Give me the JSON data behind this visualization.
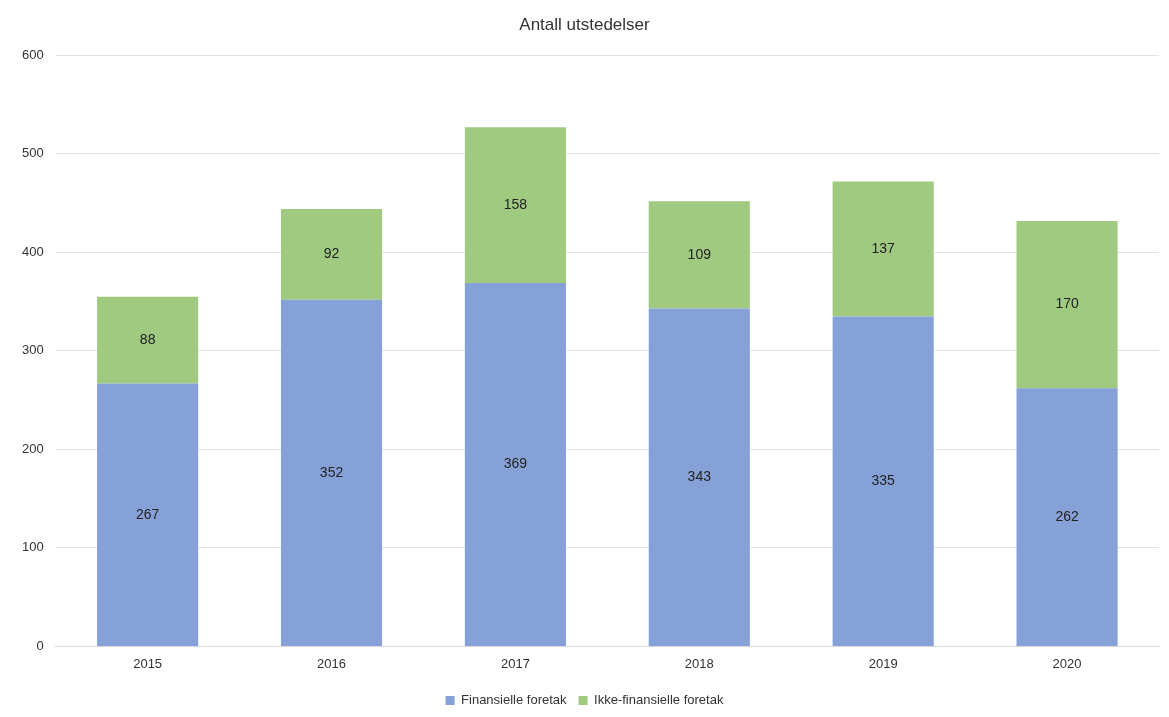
{
  "chart_data": {
    "type": "bar",
    "title": "Antall utstedelser",
    "categories": [
      "2015",
      "2016",
      "2017",
      "2018",
      "2019",
      "2020"
    ],
    "stacked": true,
    "series": [
      {
        "name": "Finansielle foretak",
        "color": "#86a1d8",
        "values": [
          267,
          352,
          369,
          343,
          335,
          262
        ]
      },
      {
        "name": "Ikke-finansielle foretak",
        "color": "#a0ca80",
        "values": [
          88,
          92,
          158,
          109,
          137,
          170
        ]
      }
    ],
    "ylim": [
      0,
      600
    ],
    "yticks": [
      0,
      100,
      200,
      300,
      400,
      500,
      600
    ],
    "grid": "y",
    "legend": "bottom",
    "data_labels": true
  }
}
